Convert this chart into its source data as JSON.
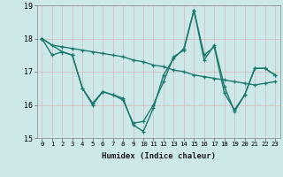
{
  "xlabel": "Humidex (Indice chaleur)",
  "xlim": [
    -0.5,
    23.5
  ],
  "ylim": [
    15,
    19
  ],
  "yticks": [
    15,
    16,
    17,
    18,
    19
  ],
  "xticks": [
    0,
    1,
    2,
    3,
    4,
    5,
    6,
    7,
    8,
    9,
    10,
    11,
    12,
    13,
    14,
    15,
    16,
    17,
    18,
    19,
    20,
    21,
    22,
    23
  ],
  "bg_color": "#cce8e8",
  "grid_color": "#b0d8d8",
  "line_color": "#1a7a6e",
  "line1_x": [
    0,
    1,
    2,
    3,
    4,
    5,
    6,
    7,
    8,
    9,
    10,
    11,
    12,
    13,
    14,
    15,
    16,
    17,
    18,
    19,
    20,
    21,
    22,
    23
  ],
  "line1_y": [
    18.0,
    17.5,
    17.6,
    17.5,
    16.5,
    16.0,
    16.4,
    16.3,
    16.2,
    15.4,
    15.2,
    15.9,
    16.9,
    17.4,
    17.7,
    18.85,
    17.5,
    17.75,
    16.35,
    15.85,
    16.3,
    17.1,
    17.1,
    16.9
  ],
  "line2_x": [
    0,
    1,
    2,
    3,
    4,
    5,
    6,
    7,
    8,
    9,
    10,
    11,
    12,
    13,
    14,
    15,
    16,
    17,
    18,
    19,
    20,
    21,
    22,
    23
  ],
  "line2_y": [
    18.0,
    17.8,
    17.75,
    17.7,
    17.65,
    17.6,
    17.55,
    17.5,
    17.45,
    17.35,
    17.3,
    17.2,
    17.15,
    17.05,
    17.0,
    16.9,
    16.85,
    16.8,
    16.75,
    16.7,
    16.65,
    16.6,
    16.65,
    16.7
  ],
  "line3_x": [
    0,
    2,
    3,
    4,
    5,
    6,
    7,
    8,
    9,
    10,
    11,
    12,
    13,
    14,
    15,
    16,
    17,
    18,
    19,
    20,
    21,
    22,
    23
  ],
  "line3_y": [
    18.0,
    17.6,
    17.5,
    16.5,
    16.05,
    16.4,
    16.3,
    16.15,
    15.45,
    15.5,
    16.0,
    16.7,
    17.45,
    17.65,
    18.85,
    17.35,
    17.8,
    16.55,
    15.8,
    16.3,
    17.1,
    17.1,
    16.9
  ]
}
